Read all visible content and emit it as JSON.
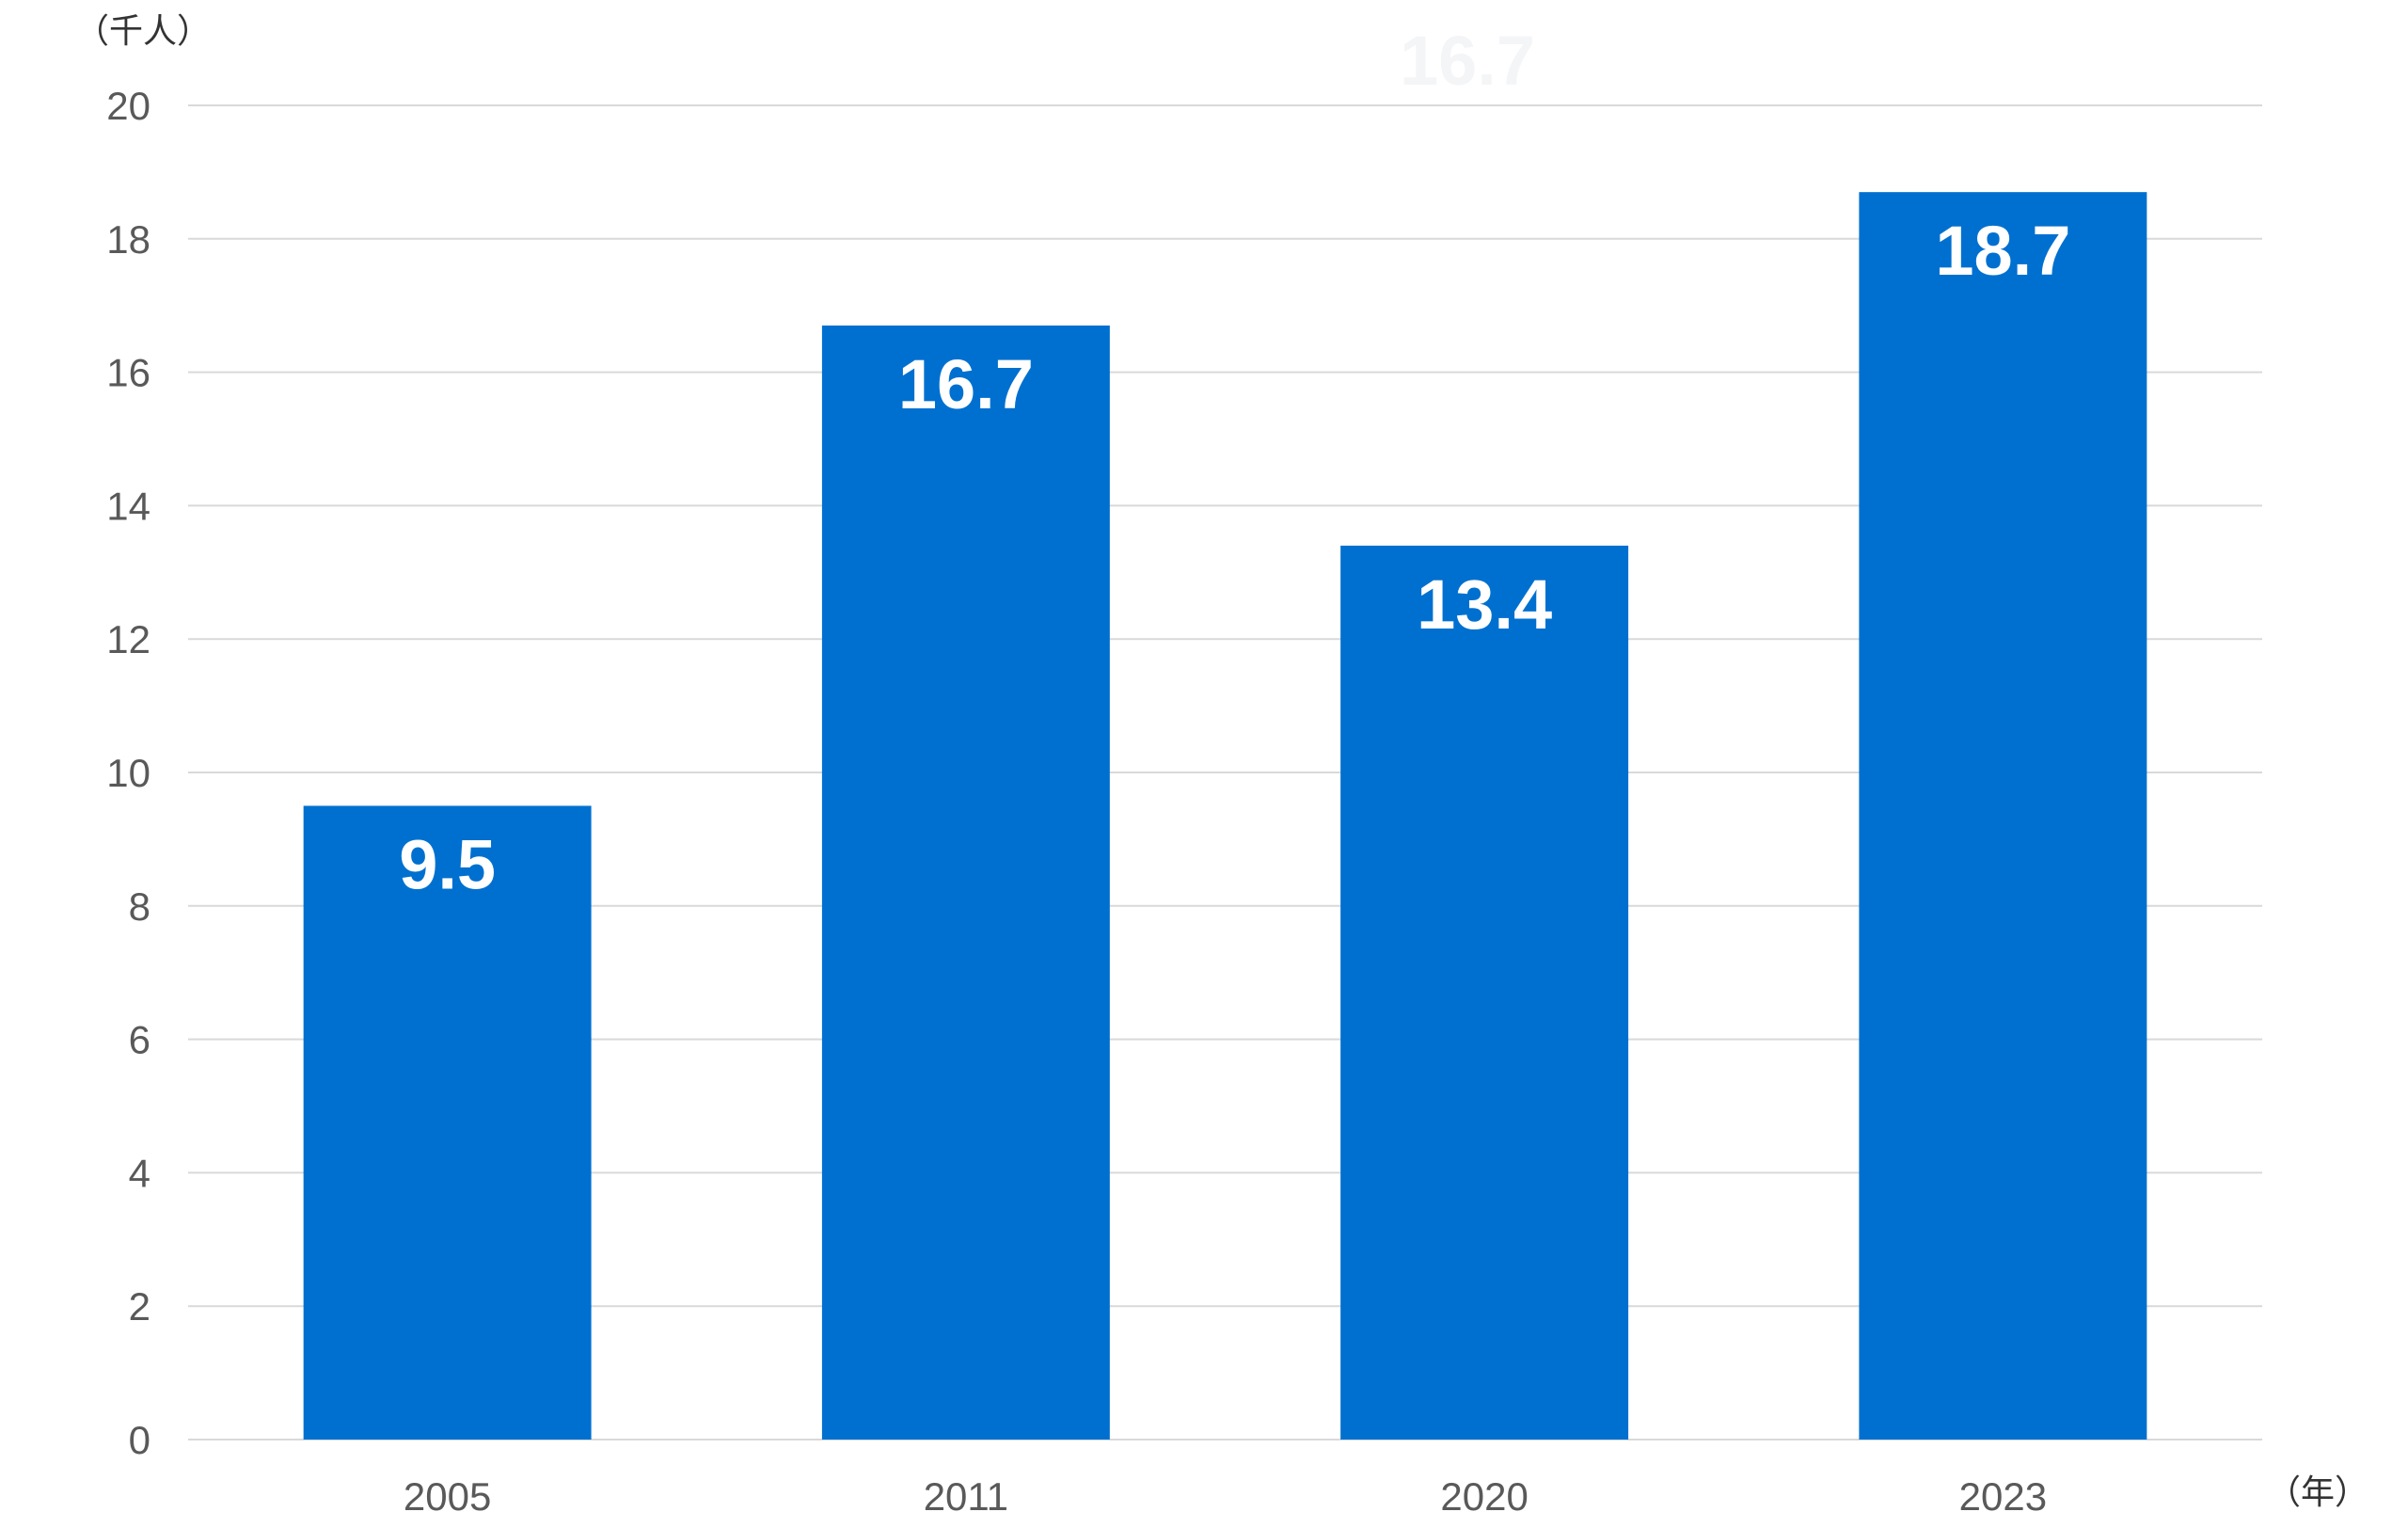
{
  "chart_data": {
    "type": "bar",
    "categories": [
      "2005",
      "2011",
      "2020",
      "2023"
    ],
    "values": [
      9.5,
      16.7,
      13.4,
      18.7
    ],
    "data_labels": [
      "9.5",
      "16.7",
      "13.4",
      "18.7"
    ],
    "ghost_label": "16.7",
    "y_unit_label": "（千人）",
    "x_unit_label": "（年）",
    "ylim": [
      0,
      20
    ],
    "yticks": [
      0,
      2,
      4,
      6,
      8,
      10,
      12,
      14,
      16,
      18,
      20
    ],
    "ytick_labels": [
      "0",
      "2",
      "4",
      "6",
      "8",
      "10",
      "12",
      "14",
      "16",
      "18",
      "20"
    ],
    "grid": true,
    "legend": "none",
    "colors": {
      "bar": "#0070d0",
      "grid": "#d9d9d9",
      "tick": "#595959"
    }
  }
}
